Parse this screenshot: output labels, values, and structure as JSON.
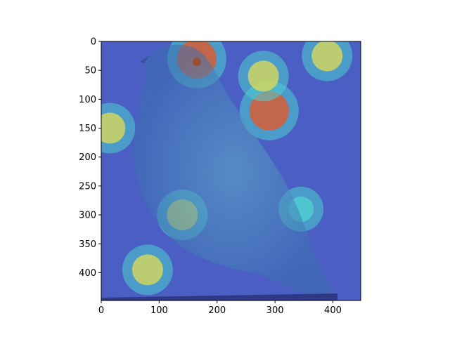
{
  "chart_data": {
    "type": "heatmap",
    "title": "",
    "xlabel": "",
    "ylabel": "",
    "xlim": [
      0,
      448
    ],
    "ylim": [
      448,
      0
    ],
    "y_inverted": true,
    "xticks": [
      0,
      100,
      200,
      300,
      400
    ],
    "yticks": [
      0,
      50,
      100,
      150,
      200,
      250,
      300,
      350,
      400
    ],
    "xtick_labels": [
      "0",
      "100",
      "200",
      "300",
      "400"
    ],
    "ytick_labels": [
      "0",
      "50",
      "100",
      "150",
      "200",
      "250",
      "300",
      "350",
      "400"
    ],
    "grid": false,
    "legend": "none",
    "colormap": "jet",
    "overlay": "attention heatmap over a photograph of a small songbird",
    "hot_regions": [
      {
        "x": 165,
        "y": 30,
        "level": "high"
      },
      {
        "x": 290,
        "y": 120,
        "level": "high"
      },
      {
        "x": 280,
        "y": 60,
        "level": "medium"
      },
      {
        "x": 390,
        "y": 25,
        "level": "medium"
      },
      {
        "x": 140,
        "y": 300,
        "level": "medium"
      },
      {
        "x": 80,
        "y": 395,
        "level": "medium"
      },
      {
        "x": 15,
        "y": 150,
        "level": "medium"
      },
      {
        "x": 345,
        "y": 290,
        "level": "low"
      }
    ]
  },
  "colors": {
    "cold": "#2f2f9f",
    "cool": "#3b6fd6",
    "cyan": "#4fd0d0",
    "warm": "#d8d85a",
    "hot": "#e05a2a",
    "axis": "#000000"
  }
}
